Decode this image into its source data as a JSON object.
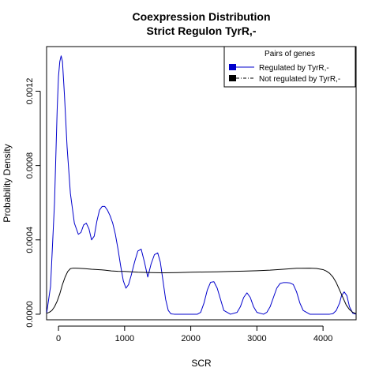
{
  "chart_data": {
    "type": "line",
    "title": "Coexpression Distribution",
    "subtitle": "Strict Regulon TyrR,-",
    "xlabel": "SCR",
    "ylabel": "Probability Density",
    "xlim": [
      -180,
      4500
    ],
    "ylim": [
      -3e-05,
      0.00144
    ],
    "xticks": [
      0,
      1000,
      2000,
      3000,
      4000
    ],
    "xtick_labels": [
      "0",
      "1000",
      "2000",
      "3000",
      "4000"
    ],
    "yticks": [
      0,
      0.0004,
      0.0008,
      0.0012
    ],
    "ytick_labels": [
      "0.0000",
      "0.0004",
      "0.0008",
      "0.0012"
    ],
    "legend": {
      "title": "Pairs of genes",
      "placement": "top-right",
      "entries": [
        "Regulated by  TyrR,-",
        "Not regulated by  TyrR,-"
      ]
    },
    "series": [
      {
        "name": "Regulated by  TyrR,-",
        "color": "#0000cc",
        "x": [
          -180,
          -120,
          -60,
          -20,
          0,
          20,
          40,
          60,
          90,
          130,
          180,
          240,
          300,
          340,
          380,
          420,
          460,
          500,
          540,
          580,
          620,
          660,
          700,
          740,
          780,
          820,
          860,
          900,
          940,
          980,
          1020,
          1060,
          1100,
          1150,
          1200,
          1250,
          1300,
          1350,
          1400,
          1450,
          1500,
          1540,
          1580,
          1620,
          1660,
          1700,
          1750,
          1800,
          1900,
          2000,
          2100,
          2150,
          2200,
          2250,
          2300,
          2350,
          2400,
          2450,
          2500,
          2600,
          2700,
          2750,
          2800,
          2850,
          2900,
          2950,
          3000,
          3100,
          3150,
          3200,
          3250,
          3300,
          3350,
          3400,
          3450,
          3500,
          3550,
          3600,
          3650,
          3700,
          3800,
          3900,
          4000,
          4100,
          4150,
          4200,
          4250,
          4280,
          4320,
          4360,
          4400,
          4450,
          4500
        ],
        "y": [
          3e-06,
          0.00015,
          0.0006,
          0.0011,
          0.00128,
          0.00136,
          0.00139,
          0.00136,
          0.00118,
          0.0009,
          0.00065,
          0.00049,
          0.00043,
          0.00044,
          0.00048,
          0.00049,
          0.00046,
          0.0004,
          0.00042,
          0.0005,
          0.00056,
          0.00058,
          0.00058,
          0.00056,
          0.00053,
          0.00049,
          0.00043,
          0.00035,
          0.00026,
          0.00018,
          0.00014,
          0.00016,
          0.00021,
          0.00028,
          0.00034,
          0.00035,
          0.00028,
          0.0002,
          0.00027,
          0.00032,
          0.00033,
          0.00028,
          0.00018,
          8e-05,
          2e-05,
          2e-06,
          0.0,
          0.0,
          0.0,
          0.0,
          0.0,
          1e-05,
          6e-05,
          0.00013,
          0.000172,
          0.000175,
          0.00014,
          8e-05,
          2e-05,
          0.0,
          1e-05,
          4e-05,
          9e-05,
          0.000115,
          9e-05,
          4e-05,
          1e-05,
          0.0,
          1e-05,
          4e-05,
          9e-05,
          0.00014,
          0.000165,
          0.00017,
          0.00017,
          0.000168,
          0.00016,
          0.00012,
          6e-05,
          2e-05,
          0.0,
          0.0,
          0.0,
          0.0,
          3e-06,
          2e-05,
          6e-05,
          0.0001,
          0.00012,
          0.0001,
          4e-05,
          5e-06,
          0.0
        ]
      },
      {
        "name": "Not regulated by  TyrR,-",
        "color": "#000000",
        "x": [
          -180,
          -140,
          -100,
          -60,
          -20,
          20,
          60,
          100,
          140,
          180,
          220,
          260,
          300,
          400,
          500,
          600,
          700,
          800,
          900,
          1000,
          1200,
          1400,
          1600,
          1800,
          2000,
          2200,
          2400,
          2600,
          2800,
          3000,
          3200,
          3400,
          3600,
          3800,
          3900,
          4000,
          4050,
          4100,
          4150,
          4200,
          4250,
          4300,
          4350,
          4400,
          4450,
          4500
        ],
        "y": [
          5e-06,
          1e-05,
          2e-05,
          4e-05,
          7e-05,
          0.00011,
          0.00016,
          0.0002,
          0.00023,
          0.000245,
          0.000248,
          0.000248,
          0.000247,
          0.000245,
          0.000242,
          0.00024,
          0.000237,
          0.000233,
          0.000231,
          0.00023,
          0.000226,
          0.000224,
          0.000223,
          0.000224,
          0.000226,
          0.000227,
          0.000228,
          0.00023,
          0.000232,
          0.000234,
          0.000237,
          0.000242,
          0.000247,
          0.000248,
          0.000246,
          0.00024,
          0.000232,
          0.00022,
          0.0002,
          0.00017,
          0.00013,
          9e-05,
          5e-05,
          2.5e-05,
          1e-05,
          3e-06
        ]
      }
    ]
  }
}
